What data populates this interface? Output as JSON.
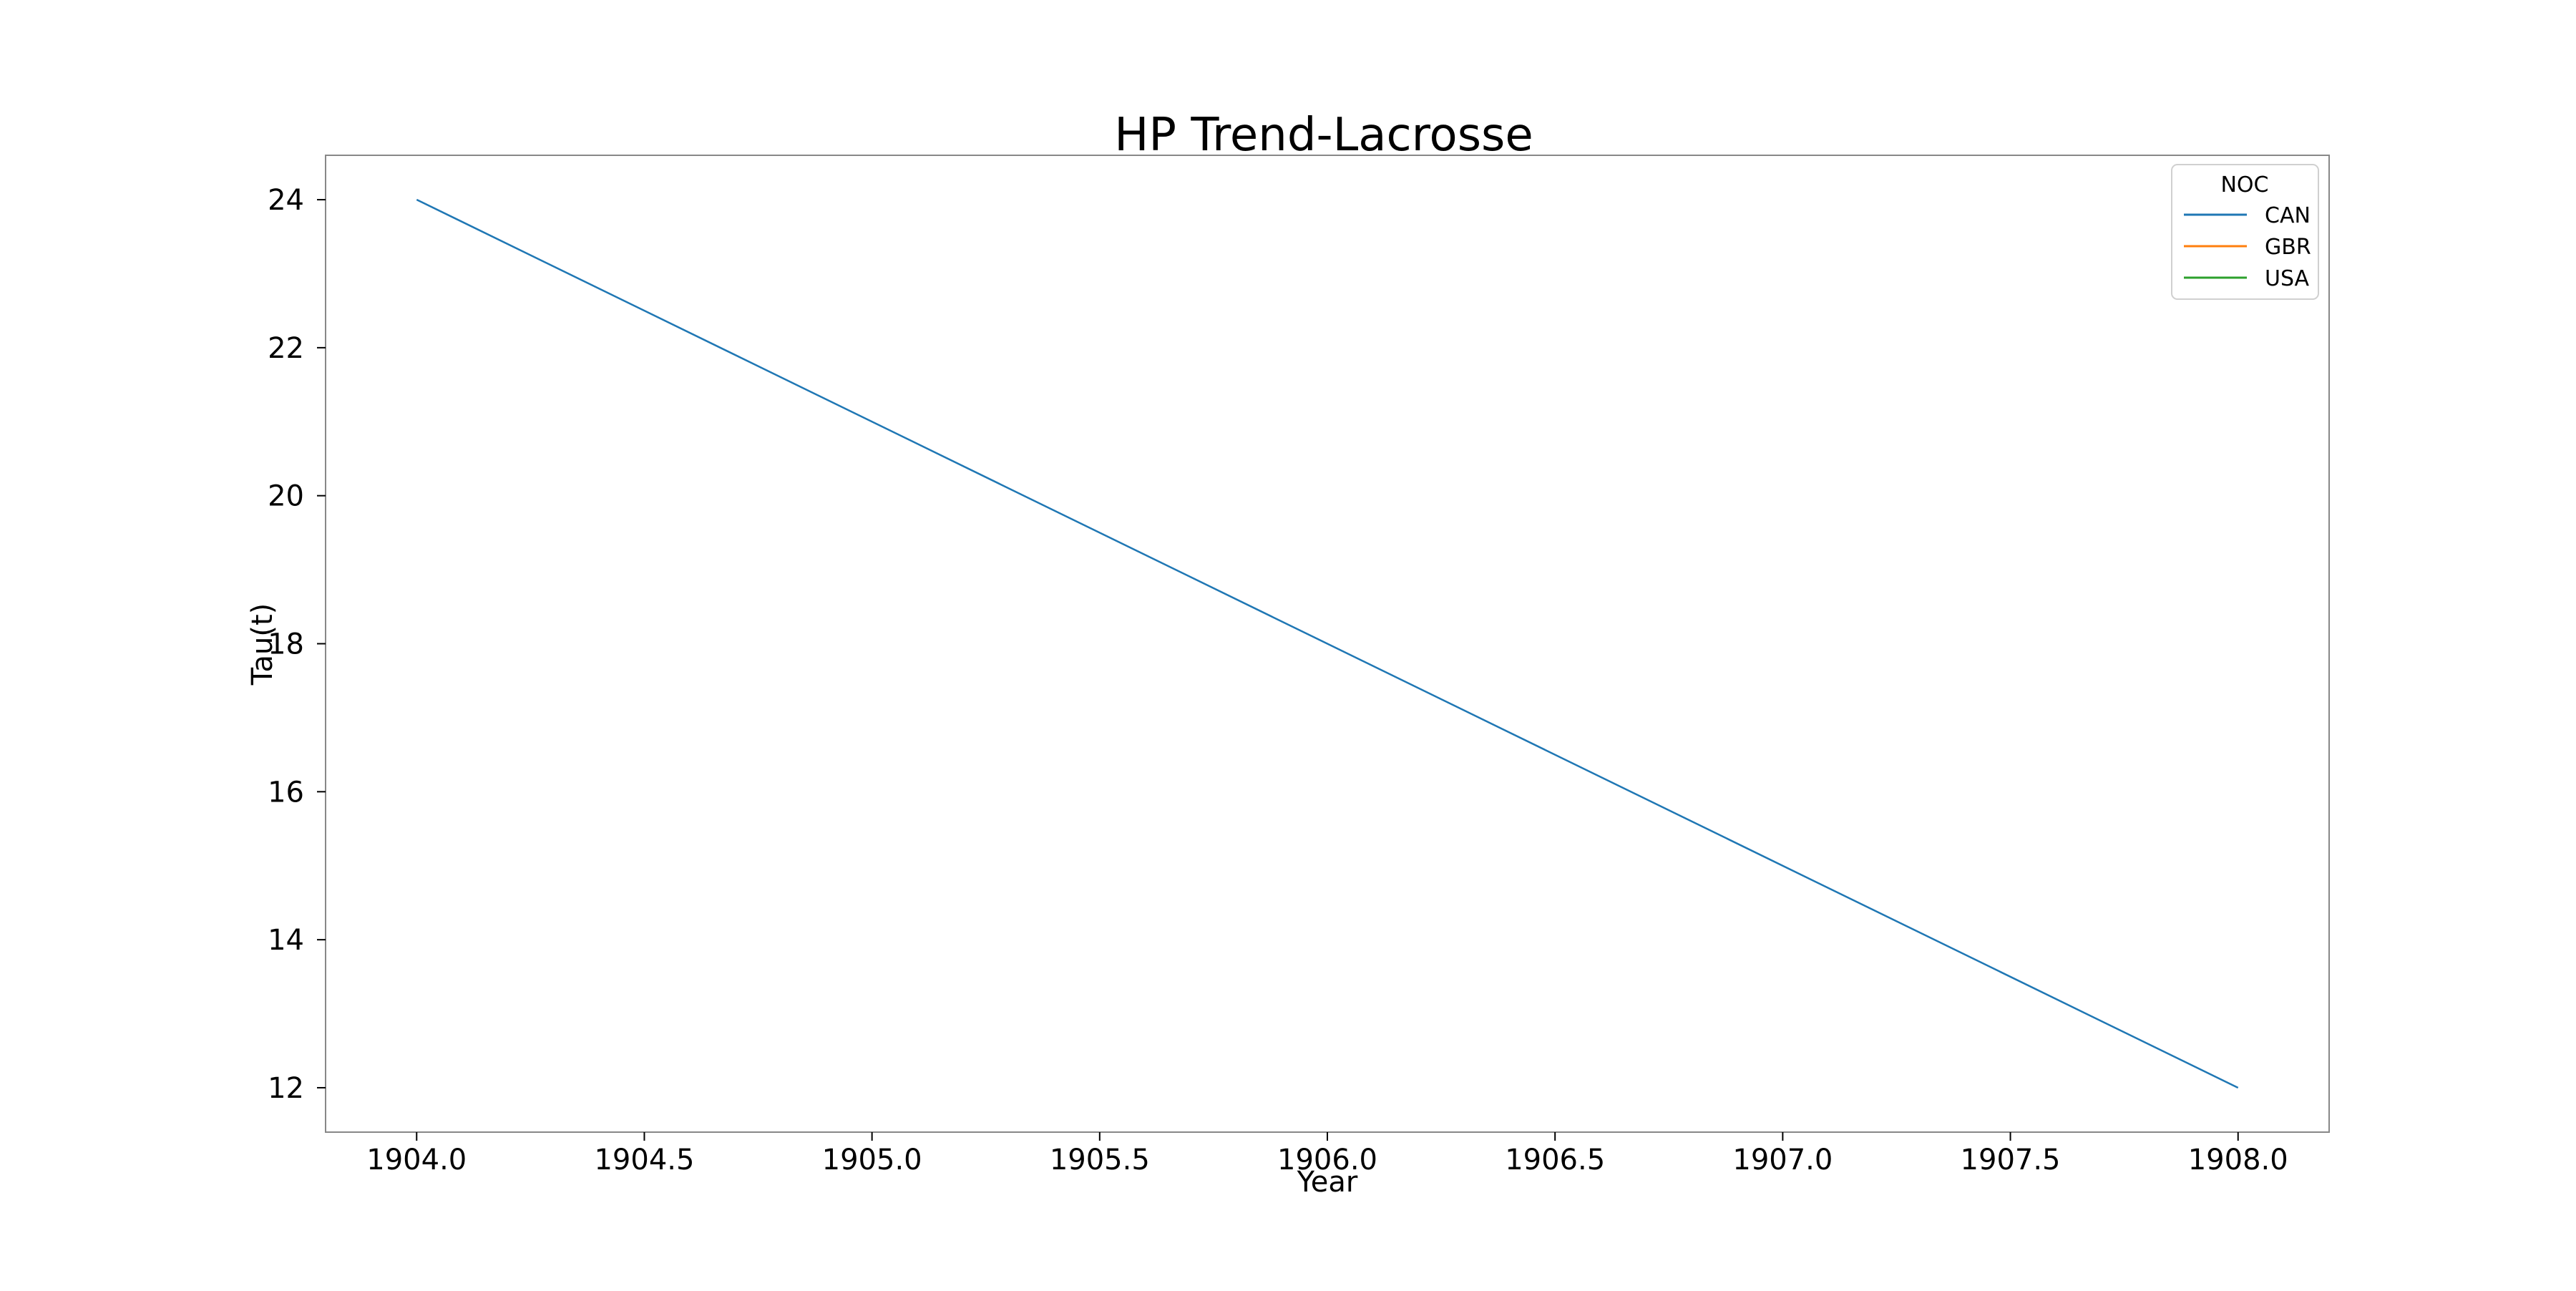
{
  "chart_data": {
    "type": "line",
    "title": "HP Trend-Lacrosse",
    "xlabel": "Year",
    "ylabel": "Tau(t)",
    "xlim": [
      1903.8,
      1908.2
    ],
    "ylim": [
      11.4,
      24.6
    ],
    "xticks": [
      1904.0,
      1904.5,
      1905.0,
      1905.5,
      1906.0,
      1906.5,
      1907.0,
      1907.5,
      1908.0
    ],
    "xtick_labels": [
      "1904.0",
      "1904.5",
      "1905.0",
      "1905.5",
      "1906.0",
      "1906.5",
      "1907.0",
      "1907.5",
      "1908.0"
    ],
    "yticks": [
      12,
      14,
      16,
      18,
      20,
      22,
      24
    ],
    "ytick_labels": [
      "12",
      "14",
      "16",
      "18",
      "20",
      "22",
      "24"
    ],
    "grid": false,
    "legend": {
      "title": "NOC",
      "placement": "top-right",
      "entries": [
        "CAN",
        "GBR",
        "USA"
      ]
    },
    "series": [
      {
        "name": "CAN",
        "color": "#1f77b4",
        "x": [
          1904,
          1908
        ],
        "y": [
          24,
          12
        ]
      },
      {
        "name": "GBR",
        "color": "#ff7f0e",
        "x": [],
        "y": []
      },
      {
        "name": "USA",
        "color": "#2ca02c",
        "x": [],
        "y": []
      }
    ]
  }
}
